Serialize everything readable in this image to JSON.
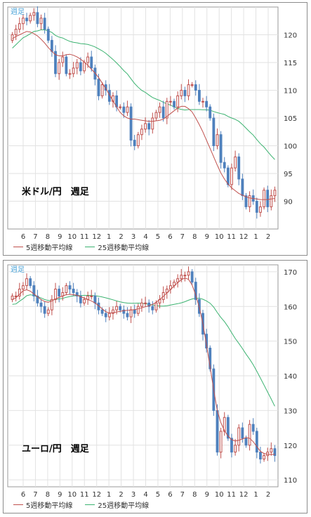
{
  "panels": [
    {
      "badge": "週足",
      "title": "米ドル/円　週足",
      "legend": [
        "5週移動平均線",
        "25週移動平均線"
      ],
      "colors": {
        "ma5": "#c0504d",
        "ma25": "#3cb371",
        "bull": "#c0504d",
        "bear": "#4f81bd",
        "grid": "#e2e2e2"
      },
      "chart_data": {
        "type": "candlestick",
        "title": "米ドル/円　週足",
        "x_labels": [
          "6",
          "7",
          "8",
          "9",
          "10",
          "11",
          "12",
          "1",
          "2",
          "3",
          "4",
          "5",
          "6",
          "7",
          "8",
          "9",
          "10",
          "11",
          "12",
          "1",
          "2"
        ],
        "y_ticks": [
          90,
          95,
          100,
          105,
          110,
          115,
          120
        ],
        "ylim": [
          85,
          125
        ],
        "close": [
          120,
          121,
          122,
          123,
          122.5,
          123.5,
          124,
          122,
          123,
          121,
          119,
          117,
          113,
          115,
          116,
          113,
          113,
          114,
          115,
          113.5,
          115,
          116,
          114,
          112,
          109,
          111,
          110,
          108,
          109,
          107,
          107,
          106,
          107,
          101,
          100,
          102,
          103,
          104,
          103,
          105,
          106,
          107,
          105,
          108,
          108,
          107,
          109,
          110,
          109,
          111,
          111,
          110,
          108,
          108,
          107,
          105,
          100,
          102,
          97,
          96,
          93,
          96,
          98,
          94,
          91,
          89,
          91,
          90,
          88,
          89,
          92,
          89,
          91,
          92
        ],
        "ma5": [
          119.3,
          119.7,
          120,
          120.3,
          120.6,
          120.5,
          120.2,
          119.8,
          119.2,
          118.5,
          117.7,
          117,
          116.4,
          116.2,
          116.2,
          116.4,
          116.5,
          116.3,
          116,
          115.6,
          115.1,
          114.5,
          113.8,
          113.1,
          112.3,
          111.3,
          110.3,
          109.2,
          108.1,
          107,
          106,
          105.4,
          105,
          104.8,
          104.8,
          104.7,
          104.6,
          104.5,
          104.4,
          104.4,
          104.5,
          104.6,
          104.8,
          105.3,
          105.8,
          106.3,
          106.8,
          107.1,
          107.1,
          106.7,
          106.1,
          105,
          103.8,
          102.5,
          101,
          99.5,
          98,
          96.5,
          95.1,
          94,
          93.1,
          92.4,
          91.9,
          91.4,
          91.1,
          90.8,
          90.6,
          90.5,
          90.4,
          90.3,
          90.3,
          90.3,
          90.4,
          90.5
        ]
      }
    },
    {
      "badge": "週足",
      "title": "ユーロ/円　週足",
      "legend": [
        "5週移動平均線",
        "25週移動平均線"
      ],
      "colors": {
        "ma5": "#c0504d",
        "ma25": "#3cb371",
        "bull": "#c0504d",
        "bear": "#4f81bd",
        "grid": "#e2e2e2"
      },
      "chart_data": {
        "type": "candlestick",
        "title": "ユーロ/円　週足",
        "x_labels": [
          "6",
          "7",
          "8",
          "9",
          "10",
          "11",
          "12",
          "1",
          "2",
          "3",
          "4",
          "5",
          "6",
          "7",
          "8",
          "9",
          "10",
          "11",
          "12",
          "1",
          "2"
        ],
        "y_ticks": [
          110,
          120,
          130,
          140,
          150,
          160,
          170
        ],
        "ylim": [
          108,
          172
        ],
        "close": [
          163,
          163,
          165,
          166,
          168,
          166,
          163,
          161,
          160,
          158,
          159,
          162,
          165,
          163,
          164,
          166,
          165,
          164,
          163,
          161,
          162,
          163,
          163,
          161,
          159,
          158,
          157,
          158,
          159,
          160,
          159,
          158,
          157,
          159,
          158,
          160,
          161,
          161,
          160,
          159,
          161,
          162,
          164,
          165,
          166,
          167,
          168,
          169,
          169,
          170,
          167,
          162,
          158,
          152,
          148,
          142,
          130,
          118,
          124,
          128,
          122,
          118,
          120,
          125,
          122,
          120,
          126,
          124,
          118,
          116,
          117,
          118,
          119,
          117
        ],
        "ma5": [
          162,
          162.5,
          163.5,
          164.5,
          164.8,
          164.4,
          163.6,
          162.8,
          162,
          161.4,
          161.2,
          161.6,
          162.2,
          162.6,
          163,
          163.4,
          163.5,
          163.4,
          163.2,
          162.8,
          162.4,
          162,
          161.6,
          161,
          160.2,
          159.3,
          158.5,
          158.1,
          158.2,
          158.4,
          158.6,
          158.8,
          158.9,
          159,
          159.1,
          159.3,
          159.6,
          159.9,
          160.2,
          160.6,
          161.2,
          162,
          162.9,
          163.9,
          164.9,
          165.9,
          166.9,
          167.7,
          168.2,
          167.8,
          166.2,
          163.3,
          159.7,
          155,
          149,
          142.5,
          136,
          130,
          126.5,
          124.2,
          122.6,
          121.6,
          121.2,
          121.4,
          121.8,
          122.2,
          122,
          121,
          119.6,
          118.2,
          117.6,
          117.4,
          117.3,
          117.4
        ]
      }
    }
  ]
}
